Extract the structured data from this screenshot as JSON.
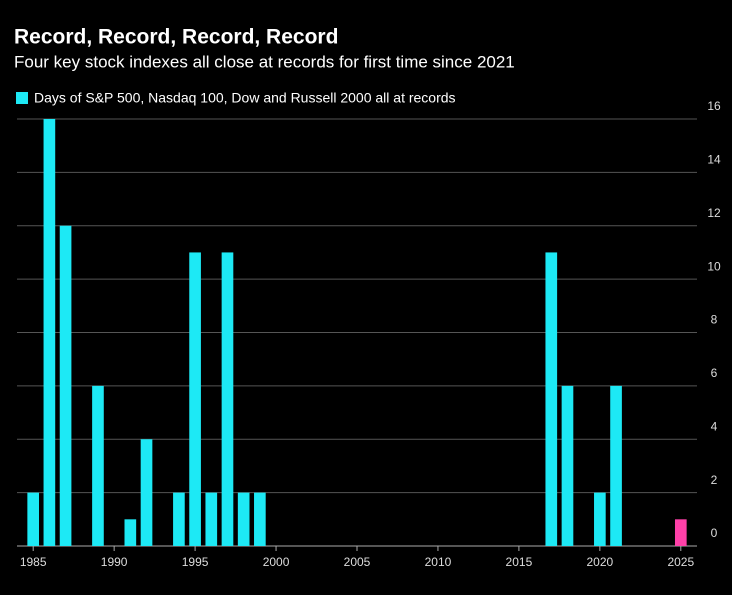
{
  "chart_data": {
    "type": "bar",
    "title": "Record, Record, Record, Record",
    "subtitle": "Four key stock indexes all close at records for first time since 2021",
    "x": [
      1985,
      1986,
      1987,
      1989,
      1991,
      1992,
      1994,
      1995,
      1996,
      1997,
      1998,
      1999,
      2017,
      2018,
      2020,
      2021,
      2025
    ],
    "series": [
      {
        "name": "Days of S&P 500, Nasdaq 100, Dow and Russell 2000 all at records",
        "color": "#1de9f5",
        "values": [
          2,
          16,
          12,
          6,
          1,
          4,
          2,
          11,
          2,
          11,
          2,
          2,
          11,
          6,
          2,
          6,
          1
        ]
      }
    ],
    "bar_colors": [
      "#1de9f5",
      "#1de9f5",
      "#1de9f5",
      "#1de9f5",
      "#1de9f5",
      "#1de9f5",
      "#1de9f5",
      "#1de9f5",
      "#1de9f5",
      "#1de9f5",
      "#1de9f5",
      "#1de9f5",
      "#1de9f5",
      "#1de9f5",
      "#1de9f5",
      "#1de9f5",
      "#ff40a8"
    ],
    "xlim": [
      1984,
      2026
    ],
    "xticks": [
      1985,
      1990,
      1995,
      2000,
      2005,
      2010,
      2015,
      2020,
      2025
    ],
    "ylim": [
      0,
      16
    ],
    "yticks": [
      0,
      2,
      4,
      6,
      8,
      10,
      12,
      14,
      16
    ],
    "grid": true
  }
}
